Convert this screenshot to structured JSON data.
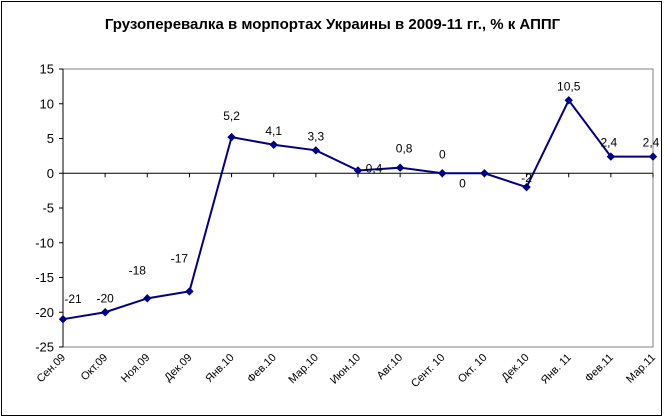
{
  "chart_data": {
    "type": "line",
    "title": "Грузоперевалка в морпортах Украины в 2009-11 гг., % к АППГ",
    "xlabel": "",
    "ylabel": "",
    "ylim": [
      -25,
      15
    ],
    "yticks": [
      15,
      10,
      5,
      0,
      -5,
      -10,
      -15,
      -20,
      -25
    ],
    "ytick_labels": [
      "15",
      "10",
      "5",
      "0",
      "-5",
      "-10",
      "-15",
      "-20",
      "-25"
    ],
    "grid": false,
    "legend": "none",
    "categories": [
      "Сен.09",
      "Окт.09",
      "Ноя.09",
      "Дек.09",
      "Янв.10",
      "Фев.10",
      "Мар.10",
      "Июн.10",
      "Авг.10",
      "Сент. 10",
      "Окт. 10",
      "Дек.10",
      "Янв. 11",
      "Фев.11",
      "Мар.11"
    ],
    "series": [
      {
        "values": [
          -21,
          -20,
          -18,
          -17,
          5.2,
          4.1,
          3.3,
          0.4,
          0.8,
          0,
          0,
          -2,
          10.5,
          2.4,
          2.4
        ],
        "data_labels": [
          "-21",
          "-20",
          "-18",
          "-17",
          "5,2",
          "4,1",
          "3,3",
          "0,4",
          "0,8",
          "0",
          "0",
          "-2",
          "10,5",
          "2,4",
          "2,4"
        ],
        "color": "#000080"
      }
    ]
  }
}
